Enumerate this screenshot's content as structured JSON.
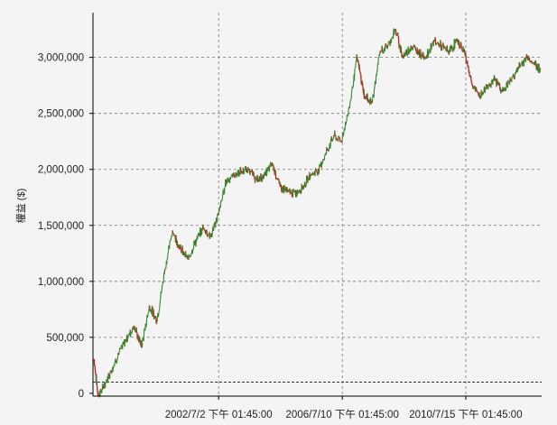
{
  "chart_data": {
    "type": "line",
    "ylabel": "權益 ($)",
    "ylim": [
      -25000,
      3400000
    ],
    "yticks": [
      0,
      500000,
      1000000,
      1500000,
      2000000,
      2500000,
      3000000
    ],
    "ytick_labels": [
      "0",
      "500,000",
      "1,000,000",
      "1,500,000",
      "2,000,000",
      "2,500,000",
      "3,000,000"
    ],
    "xlim": [
      "1998/6/1",
      "2013/1/1"
    ],
    "xticks": [
      "2002/7/2",
      "2006/7/10",
      "2010/7/15"
    ],
    "xtick_labels": [
      "2002/7/2 下午 01:45:00",
      "2006/7/10 下午 01:45:00",
      "2010/7/15 下午 01:45:00"
    ],
    "grid": true,
    "reference_line": 100000,
    "colors": {
      "up": "#2e8b2e",
      "down": "#d01818",
      "grid": "#777777"
    },
    "series": [
      {
        "x": [
          "1998/6/15",
          "1998/8/1",
          "1998/10/1",
          "1999/1/1",
          "1999/4/1",
          "1999/7/1",
          "1999/10/1",
          "2000/1/1",
          "2000/4/1",
          "2000/7/1",
          "2000/10/1",
          "2001/1/1",
          "2001/4/1",
          "2001/7/1",
          "2001/10/1",
          "2002/1/1",
          "2002/4/1",
          "2002/7/1",
          "2002/10/1",
          "2003/1/1",
          "2003/4/1",
          "2003/7/1",
          "2003/10/1",
          "2004/1/1",
          "2004/4/1",
          "2004/7/1",
          "2004/10/1",
          "2005/1/1",
          "2005/4/1",
          "2005/7/1",
          "2005/10/1",
          "2006/1/1",
          "2006/4/1",
          "2006/7/1",
          "2006/10/1",
          "2007/1/1",
          "2007/4/1",
          "2007/7/1",
          "2007/10/1",
          "2008/1/1",
          "2008/4/1",
          "2008/7/1",
          "2008/10/1",
          "2009/1/1",
          "2009/4/1",
          "2009/7/1",
          "2009/10/1",
          "2010/1/1",
          "2010/4/1",
          "2010/7/1",
          "2010/10/1",
          "2011/1/1",
          "2011/4/1",
          "2011/7/1",
          "2011/10/1",
          "2012/1/1",
          "2012/4/1",
          "2012/7/1",
          "2012/10/1",
          "2012/12/15"
        ],
        "values": [
          300000,
          -20000,
          50000,
          200000,
          350000,
          480000,
          600000,
          420000,
          780000,
          650000,
          1100000,
          1450000,
          1300000,
          1200000,
          1350000,
          1480000,
          1400000,
          1600000,
          1900000,
          1950000,
          1980000,
          2000000,
          1900000,
          1950000,
          2050000,
          1850000,
          1800000,
          1780000,
          1850000,
          1950000,
          2000000,
          2150000,
          2300000,
          2250000,
          2550000,
          3000000,
          2650000,
          2600000,
          3050000,
          3100000,
          3250000,
          3000000,
          3100000,
          3050000,
          3000000,
          3150000,
          3100000,
          3050000,
          3150000,
          3050000,
          2750000,
          2650000,
          2750000,
          2800000,
          2700000,
          2800000,
          2900000,
          3000000,
          2950000,
          2900000
        ]
      }
    ]
  }
}
